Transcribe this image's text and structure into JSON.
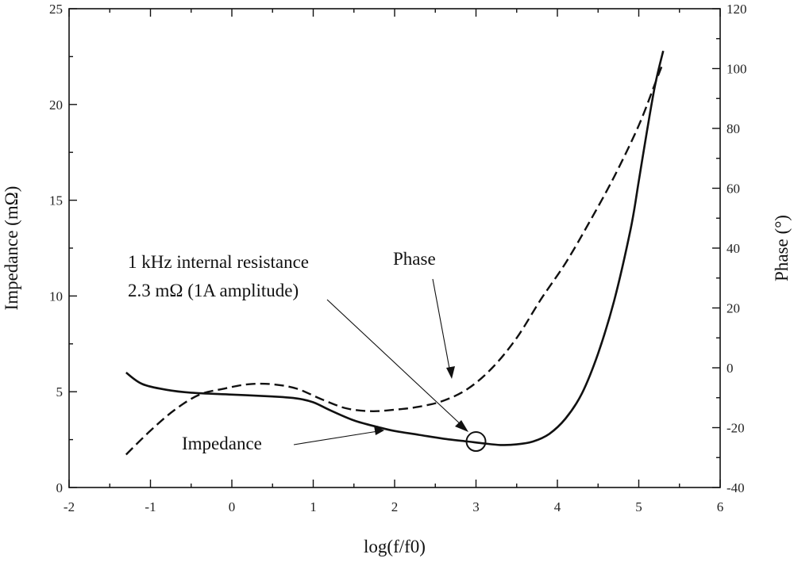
{
  "chart_data": {
    "type": "line",
    "xlabel": "log(f/f0)",
    "ylabel_left": "Impedance (mΩ)",
    "ylabel_right": "Phase (°)",
    "xlim": [
      -2,
      6
    ],
    "ylim_left": [
      0,
      25
    ],
    "ylim_right": [
      -40,
      120
    ],
    "x_ticks": [
      "-2",
      "-1",
      "0",
      "1",
      "2",
      "3",
      "4",
      "5",
      "6"
    ],
    "y_left_ticks": [
      "0",
      "5",
      "10",
      "15",
      "20",
      "25"
    ],
    "y_right_ticks": [
      "-40",
      "-20",
      "0",
      "20",
      "40",
      "60",
      "80",
      "100",
      "120"
    ],
    "series": [
      {
        "name": "Impedance",
        "axis": "left",
        "style": "solid",
        "x": [
          -1.3,
          -1.1,
          -0.8,
          -0.5,
          0.0,
          0.5,
          0.8,
          1.0,
          1.2,
          1.5,
          1.8,
          2.0,
          2.3,
          2.6,
          2.9,
          3.1,
          3.3,
          3.5,
          3.7,
          3.9,
          4.1,
          4.3,
          4.5,
          4.7,
          4.9,
          5.0,
          5.1,
          5.2,
          5.3
        ],
        "values": [
          6.0,
          5.4,
          5.1,
          4.95,
          4.85,
          4.75,
          4.65,
          4.45,
          4.05,
          3.5,
          3.15,
          2.95,
          2.75,
          2.55,
          2.4,
          2.3,
          2.22,
          2.25,
          2.4,
          2.8,
          3.6,
          4.9,
          7.0,
          9.8,
          13.5,
          16.0,
          18.6,
          21.0,
          22.8
        ]
      },
      {
        "name": "Phase",
        "axis": "right",
        "style": "dashed",
        "x": [
          -1.3,
          -1.0,
          -0.7,
          -0.4,
          -0.1,
          0.2,
          0.5,
          0.8,
          1.1,
          1.4,
          1.7,
          2.0,
          2.3,
          2.6,
          2.9,
          3.2,
          3.5,
          3.8,
          4.1,
          4.4,
          4.7,
          5.0,
          5.2,
          5.3
        ],
        "values": [
          -29,
          -21,
          -14,
          -9,
          -7,
          -5.5,
          -5.5,
          -7,
          -10.5,
          -13.5,
          -14.5,
          -14,
          -13,
          -11,
          -7,
          0,
          10,
          23,
          35,
          49,
          64,
          81,
          95,
          102
        ]
      }
    ],
    "annotations": {
      "resistance_line1": "1 kHz internal resistance",
      "resistance_line2": "2.3 mΩ (1A amplitude)",
      "phase_label": "Phase",
      "impedance_label": "Impedance",
      "marker": {
        "x": 3.0,
        "y": 2.4
      }
    }
  }
}
